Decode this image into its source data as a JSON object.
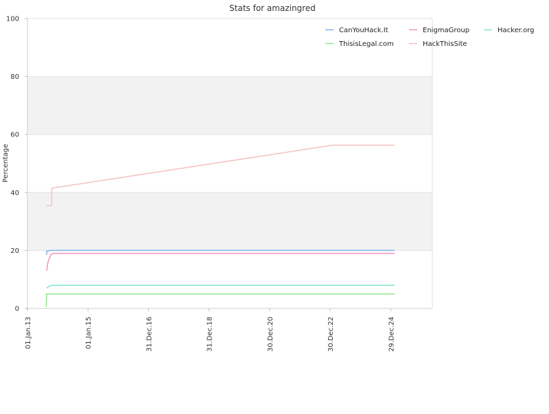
{
  "chart_data": {
    "type": "line",
    "title": "Stats for amazingred",
    "xlabel": "",
    "ylabel": "Percentage",
    "ylim": [
      0,
      100
    ],
    "yticks": [
      0,
      20,
      40,
      60,
      80,
      100
    ],
    "xlim": [
      "2013-01-01",
      "2026-05-15"
    ],
    "xticks": [
      {
        "label": "01.Jan.13",
        "date": "2013-01-01"
      },
      {
        "label": "01.Jan.15",
        "date": "2015-01-01"
      },
      {
        "label": "31.Dec.16",
        "date": "2016-12-31"
      },
      {
        "label": "31.Dec.18",
        "date": "2018-12-31"
      },
      {
        "label": "30.Dec.20",
        "date": "2020-12-30"
      },
      {
        "label": "30.Dec.22",
        "date": "2022-12-30"
      },
      {
        "label": "29.Dec.24",
        "date": "2024-12-29"
      }
    ],
    "grid": "alternating horizontal bands",
    "legend_position": "top-right",
    "series": [
      {
        "name": "CanYouHack.It",
        "color": "#7fb2e5",
        "points": [
          [
            "2013-08-20",
            18.5
          ],
          [
            "2013-08-22",
            19.8
          ],
          [
            "2013-10-15",
            20
          ],
          [
            "2025-02-15",
            20
          ]
        ]
      },
      {
        "name": "EnigmaGroup",
        "color": "#ef8fbf",
        "points": [
          [
            "2013-08-20",
            13
          ],
          [
            "2013-09-05",
            16
          ],
          [
            "2013-09-25",
            17.5
          ],
          [
            "2013-10-10",
            18.5
          ],
          [
            "2013-11-05",
            19
          ],
          [
            "2025-02-15",
            19
          ]
        ]
      },
      {
        "name": "Hacker.org",
        "color": "#7fe5d2",
        "points": [
          [
            "2013-08-20",
            7
          ],
          [
            "2013-09-10",
            7.5
          ],
          [
            "2013-10-15",
            8
          ],
          [
            "2025-02-15",
            8
          ]
        ]
      },
      {
        "name": "ThisisLegal.com",
        "color": "#8fe58f",
        "points": [
          [
            "2013-08-15",
            0.5
          ],
          [
            "2013-08-20",
            5
          ],
          [
            "2025-02-15",
            5
          ]
        ]
      },
      {
        "name": "HackThisSite",
        "color": "#f7c0c0",
        "points": [
          [
            "2013-08-20",
            35.5
          ],
          [
            "2013-10-20",
            35.5
          ],
          [
            "2013-10-22",
            41.5
          ],
          [
            "2023-01-25",
            56.3
          ],
          [
            "2025-02-15",
            56.3
          ]
        ]
      }
    ]
  }
}
